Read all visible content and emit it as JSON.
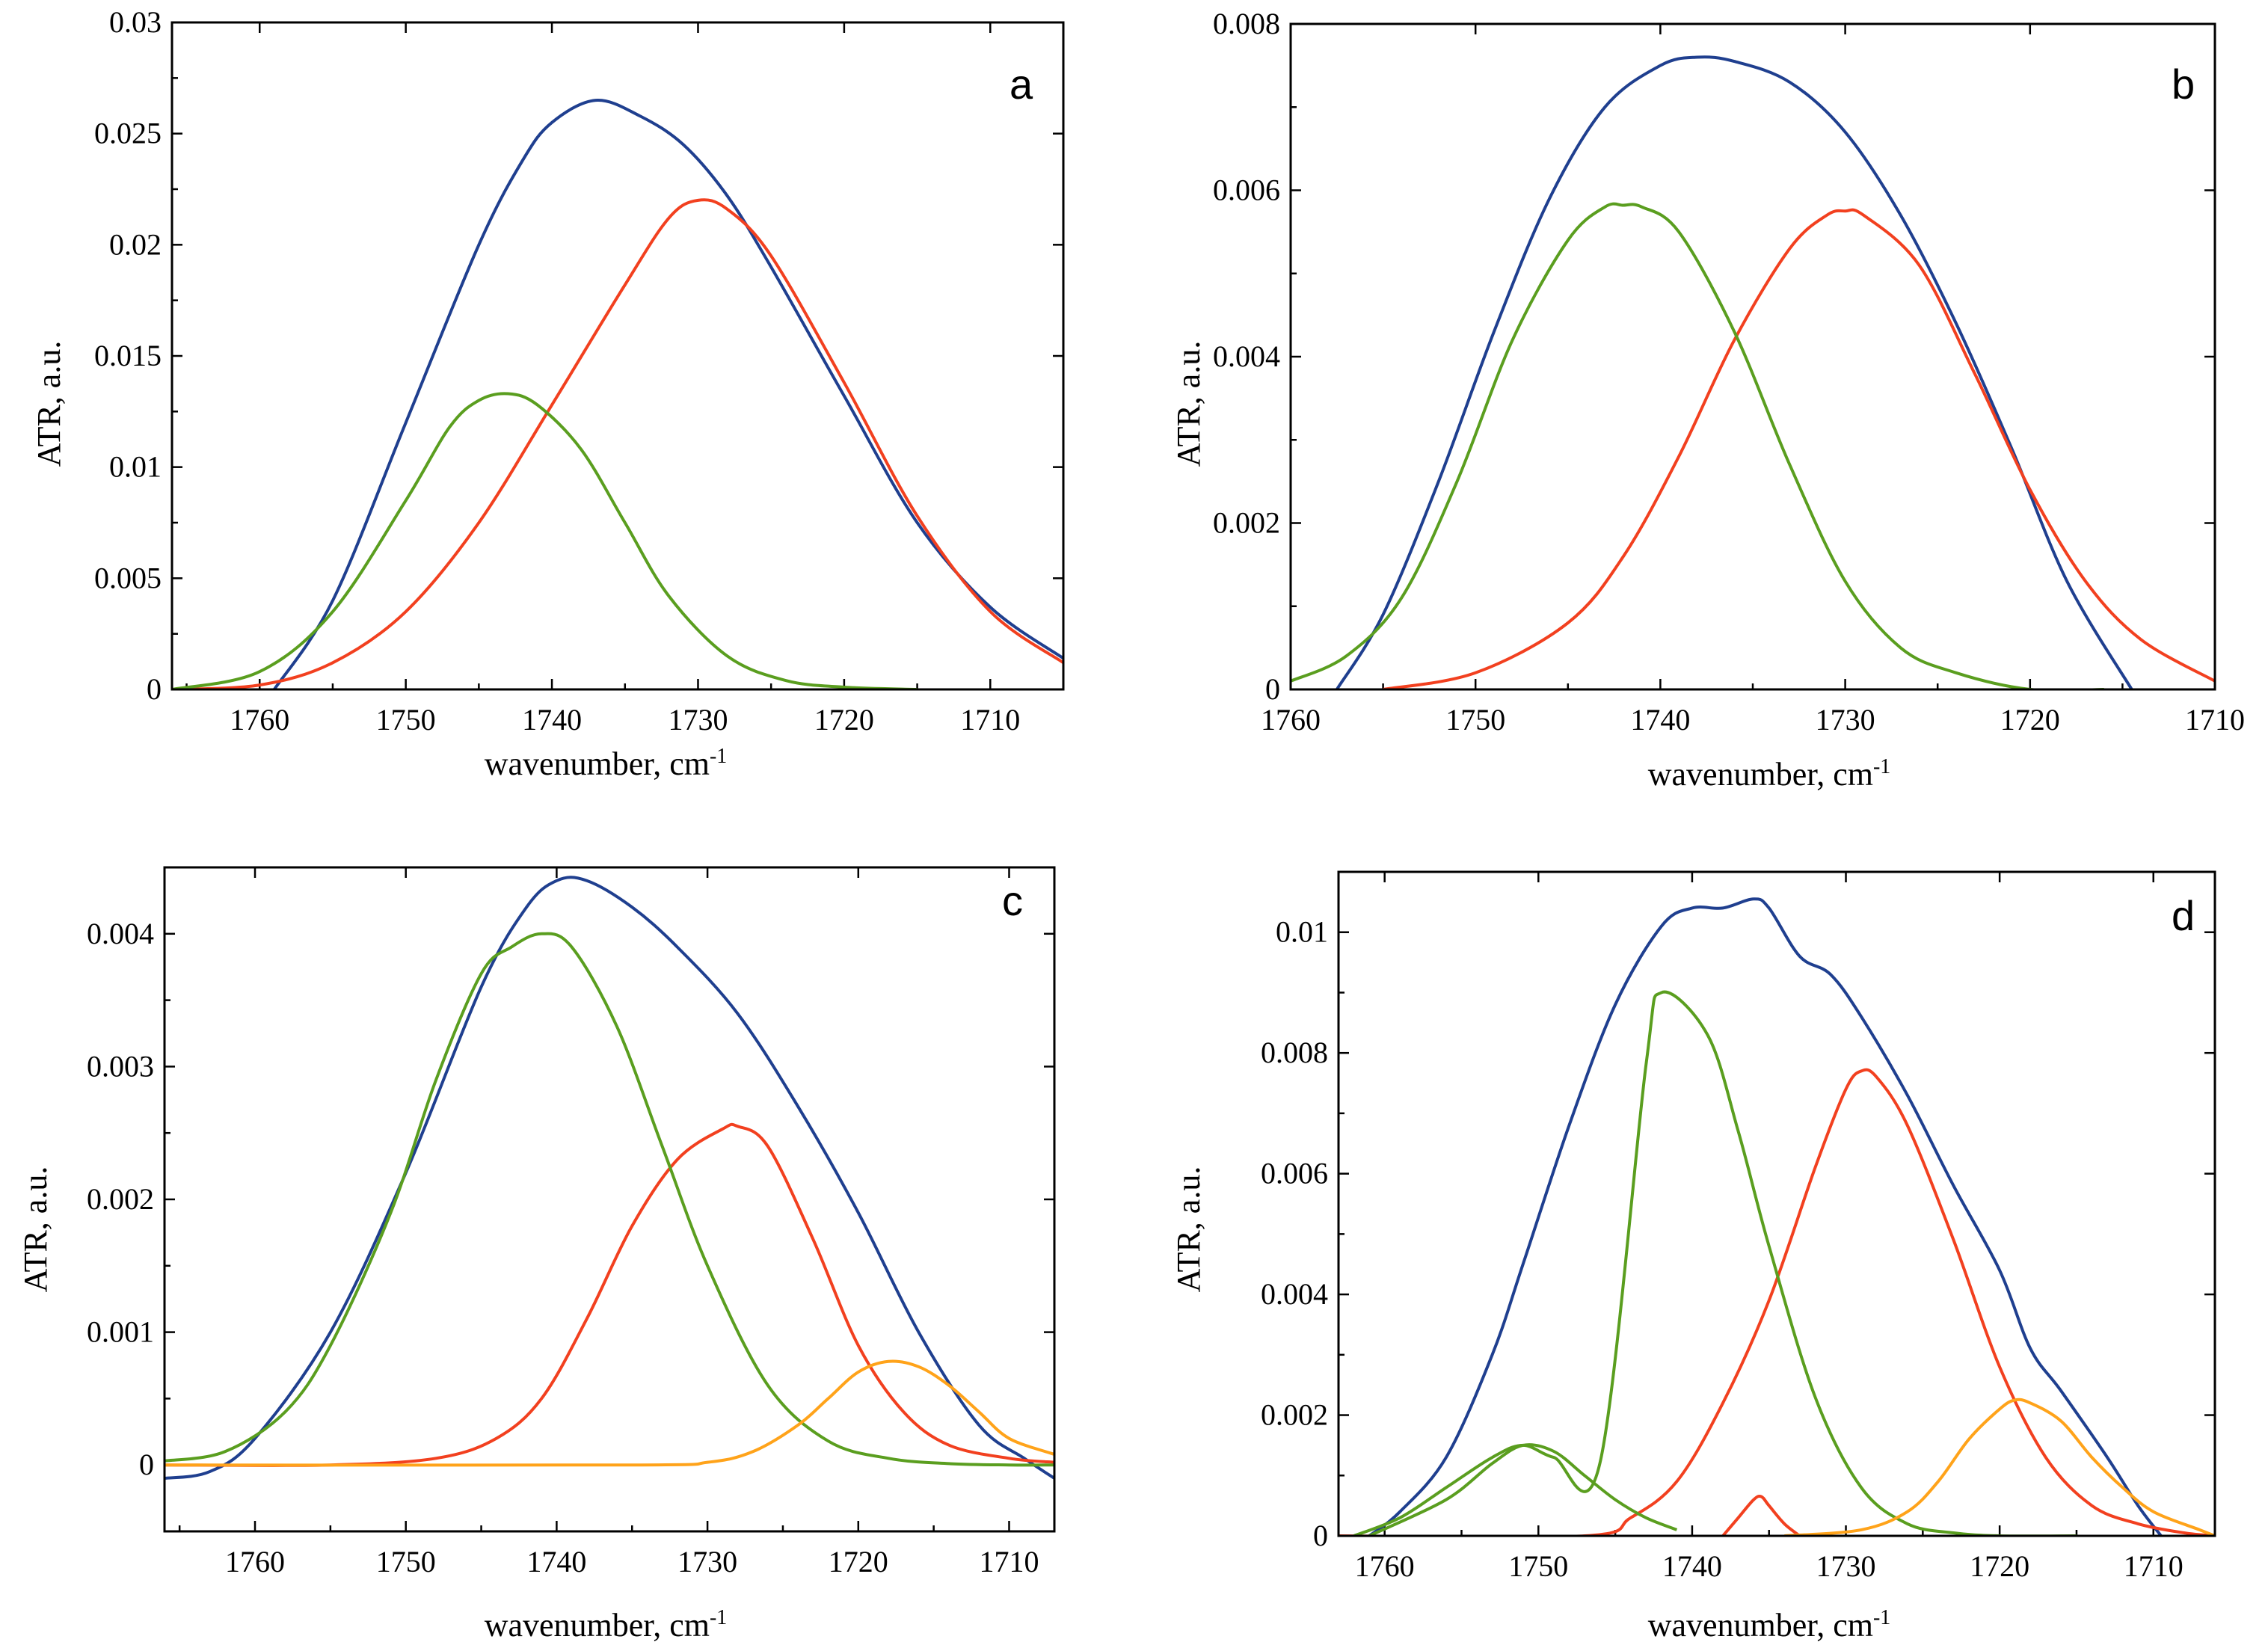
{
  "colors": {
    "blue": "#1f3f8f",
    "red": "#f2401f",
    "green": "#5a9e1f",
    "orange": "#ffa31a"
  },
  "chart_data": [
    {
      "type": "line",
      "panel": "a",
      "xlabel": "wavenumber, cm-1",
      "ylabel": "ATR, a.u.",
      "xlim": [
        1766,
        1705
      ],
      "ylim": [
        0,
        0.03
      ],
      "x_reversed": true,
      "xticks": [
        1760,
        1750,
        1740,
        1730,
        1720,
        1710
      ],
      "xtick_labels": [
        "1760",
        "1750",
        "1740",
        "1730",
        "1720",
        "1710"
      ],
      "yticks": [
        0,
        0.005,
        0.01,
        0.015,
        0.02,
        0.025,
        0.03
      ],
      "ytick_labels": [
        "0",
        "0.005",
        "0.01",
        "0.015",
        "0.02",
        "0.025",
        "0.03"
      ],
      "series": [
        {
          "color": "blue",
          "x": [
            1759,
            1755,
            1750,
            1745,
            1742,
            1740,
            1737,
            1734,
            1731,
            1728,
            1725,
            1720,
            1715,
            1710,
            1705
          ],
          "y": [
            0,
            0.004,
            0.012,
            0.02,
            0.0238,
            0.0255,
            0.0265,
            0.0258,
            0.0245,
            0.0222,
            0.019,
            0.0132,
            0.0075,
            0.0037,
            0.0014
          ]
        },
        {
          "color": "red",
          "x": [
            1766,
            1760,
            1755,
            1750,
            1745,
            1740,
            1735,
            1732,
            1730,
            1728,
            1725,
            1720,
            1715,
            1710,
            1705
          ],
          "y": [
            0,
            0.0002,
            0.0012,
            0.0035,
            0.0075,
            0.0128,
            0.0182,
            0.0212,
            0.022,
            0.0216,
            0.0195,
            0.0138,
            0.0078,
            0.0035,
            0.0012
          ]
        },
        {
          "color": "green",
          "x": [
            1766,
            1760,
            1755,
            1750,
            1747,
            1745,
            1743,
            1741,
            1738,
            1735,
            1732,
            1728,
            1724,
            1720,
            1715
          ],
          "y": [
            0,
            0.0008,
            0.0035,
            0.0085,
            0.0118,
            0.013,
            0.0133,
            0.0128,
            0.0108,
            0.0075,
            0.0042,
            0.0015,
            0.0004,
            0.0001,
            0
          ]
        }
      ]
    },
    {
      "type": "line",
      "panel": "b",
      "xlabel": "wavenumber, cm-1",
      "ylabel": "ATR, a.u.",
      "xlim": [
        1760,
        1710
      ],
      "ylim": [
        0,
        0.008
      ],
      "x_reversed": true,
      "xticks": [
        1760,
        1750,
        1740,
        1730,
        1720,
        1710
      ],
      "xtick_labels": [
        "1760",
        "1750",
        "1740",
        "1730",
        "1720",
        "1710"
      ],
      "yticks": [
        0,
        0.002,
        0.004,
        0.006,
        0.008
      ],
      "ytick_labels": [
        "0",
        "0.002",
        "0.004",
        "0.006",
        "0.008"
      ],
      "series": [
        {
          "color": "blue",
          "x": [
            1757.5,
            1755,
            1752,
            1749,
            1746,
            1743,
            1740,
            1738,
            1736,
            1733,
            1730,
            1727,
            1724,
            1721,
            1718,
            1714.5
          ],
          "y": [
            0,
            0.0009,
            0.0025,
            0.0043,
            0.0059,
            0.007,
            0.0075,
            0.0076,
            0.00755,
            0.0073,
            0.0067,
            0.0057,
            0.0044,
            0.0029,
            0.0013,
            0
          ]
        },
        {
          "color": "red",
          "x": [
            1755,
            1750,
            1745,
            1742,
            1739,
            1736,
            1733,
            1731,
            1730,
            1729,
            1726,
            1723,
            1720,
            1717,
            1714,
            1710
          ],
          "y": [
            0,
            0.0002,
            0.0008,
            0.0016,
            0.0028,
            0.0042,
            0.0053,
            0.0057,
            0.00575,
            0.0057,
            0.0051,
            0.0038,
            0.0024,
            0.0013,
            0.0006,
            0.0001
          ]
        },
        {
          "color": "green",
          "x": [
            1760,
            1757,
            1754,
            1751,
            1748,
            1745,
            1743,
            1742,
            1741,
            1739,
            1736,
            1733,
            1730,
            1727,
            1724,
            1720,
            1716
          ],
          "y": [
            0.0001,
            0.0004,
            0.0011,
            0.0025,
            0.0042,
            0.0054,
            0.0058,
            0.00582,
            0.0058,
            0.0055,
            0.0043,
            0.0027,
            0.0013,
            0.0005,
            0.0002,
            0,
            0
          ]
        }
      ]
    },
    {
      "type": "line",
      "panel": "c",
      "xlabel": "wavenumber, cm-1",
      "ylabel": "ATR, a.u.",
      "xlim": [
        1766,
        1707
      ],
      "ylim": [
        -0.0005,
        0.0045
      ],
      "x_reversed": true,
      "xticks": [
        1760,
        1750,
        1740,
        1730,
        1720,
        1710
      ],
      "xtick_labels": [
        "1760",
        "1750",
        "1740",
        "1730",
        "1720",
        "1710"
      ],
      "yticks": [
        0,
        0.001,
        0.002,
        0.003,
        0.004
      ],
      "ytick_labels": [
        "0",
        "0.001",
        "0.002",
        "0.003",
        "0.004"
      ],
      "series": [
        {
          "color": "blue",
          "x": [
            1766,
            1763,
            1760,
            1755,
            1750,
            1745,
            1742,
            1740,
            1738,
            1735,
            1732,
            1728,
            1724,
            1720,
            1716,
            1712,
            1709,
            1707
          ],
          "y": [
            -0.0001,
            -5e-05,
            0.0002,
            0.001,
            0.0022,
            0.0036,
            0.0042,
            0.0044,
            0.0044,
            0.0042,
            0.0039,
            0.0034,
            0.0027,
            0.0019,
            0.001,
            0.0003,
            5e-05,
            -0.0001
          ]
        },
        {
          "color": "red",
          "x": [
            1766,
            1755,
            1748,
            1744,
            1741,
            1738,
            1735,
            1732,
            1729,
            1728,
            1726,
            1723,
            1720,
            1717,
            1714,
            1710,
            1707
          ],
          "y": [
            0,
            0,
            5e-05,
            0.0002,
            0.0005,
            0.0011,
            0.0018,
            0.0023,
            0.00253,
            0.00255,
            0.0024,
            0.0017,
            0.0009,
            0.0004,
            0.00015,
            5e-05,
            2e-05
          ]
        },
        {
          "color": "green",
          "x": [
            1766,
            1762,
            1758,
            1755,
            1751,
            1748,
            1745,
            1743,
            1741,
            1739,
            1736,
            1733,
            1730,
            1726,
            1722,
            1718,
            1714,
            1710,
            1707
          ],
          "y": [
            3e-05,
            0.0001,
            0.0004,
            0.0009,
            0.0019,
            0.0029,
            0.0037,
            0.0039,
            0.004,
            0.0039,
            0.0033,
            0.0024,
            0.0015,
            0.0006,
            0.00018,
            5e-05,
            1e-05,
            0,
            0
          ]
        },
        {
          "color": "orange",
          "x": [
            1766,
            1735,
            1730,
            1727,
            1724,
            1722,
            1720,
            1718,
            1716,
            1714,
            1712,
            1710,
            1707
          ],
          "y": [
            0,
            0,
            2e-05,
            0.0001,
            0.0003,
            0.0005,
            0.0007,
            0.00078,
            0.00074,
            0.0006,
            0.0004,
            0.0002,
            8e-05
          ]
        }
      ]
    },
    {
      "type": "line",
      "panel": "d",
      "xlabel": "wavenumber, cm-1",
      "ylabel": "ATR, a.u.",
      "xlim": [
        1763,
        1706
      ],
      "ylim": [
        0,
        0.011
      ],
      "x_reversed": true,
      "xticks": [
        1760,
        1750,
        1740,
        1730,
        1720,
        1710
      ],
      "xtick_labels": [
        "1760",
        "1750",
        "1740",
        "1730",
        "1720",
        "1710"
      ],
      "yticks": [
        0,
        0.002,
        0.004,
        0.006,
        0.008,
        0.01
      ],
      "ytick_labels": [
        "0",
        "0.002",
        "0.004",
        "0.006",
        "0.008",
        "0.01"
      ],
      "series": [
        {
          "color": "blue",
          "x": [
            1761,
            1759,
            1756,
            1753,
            1751,
            1748,
            1745,
            1742,
            1740,
            1738,
            1736,
            1735,
            1733,
            1731,
            1729,
            1726,
            1723,
            1720,
            1718,
            1716,
            1713,
            1711,
            1709.5
          ],
          "y": [
            0,
            0.0004,
            0.0013,
            0.003,
            0.0045,
            0.0068,
            0.0088,
            0.0101,
            0.0104,
            0.0104,
            0.01055,
            0.0104,
            0.0096,
            0.0093,
            0.0086,
            0.0073,
            0.0058,
            0.0044,
            0.0031,
            0.0024,
            0.0013,
            0.0005,
            0
          ]
        },
        {
          "color": "red",
          "x": [
            1763,
            1747,
            1744,
            1741,
            1738,
            1735,
            1732,
            1730,
            1729,
            1728,
            1726,
            1723,
            1720,
            1717,
            1714,
            1711,
            1708,
            1706
          ],
          "y": [
            0,
            0,
            0.0003,
            0.0009,
            0.0022,
            0.0039,
            0.0061,
            0.0074,
            0.0077,
            0.0076,
            0.0068,
            0.0049,
            0.0028,
            0.0013,
            0.0005,
            0.0002,
            5e-05,
            0
          ]
        },
        {
          "color": "red",
          "x": [
            1738,
            1737,
            1736,
            1735.5,
            1735,
            1734,
            1733
          ],
          "y": [
            0,
            0.0003,
            0.0006,
            0.00065,
            0.0005,
            0.0002,
            0
          ]
        },
        {
          "color": "green",
          "x": [
            1762,
            1759,
            1756,
            1753,
            1751,
            1749,
            1746,
            1743,
            1742,
            1739,
            1737,
            1735,
            1732,
            1729,
            1726,
            1723,
            1720,
            1715
          ],
          "y": [
            0,
            0.0003,
            0.0008,
            0.0013,
            0.0015,
            0.0013,
            0.0012,
            0.0078,
            0.009,
            0.0083,
            0.0067,
            0.0048,
            0.0023,
            0.0008,
            0.0002,
            5e-05,
            0,
            0
          ]
        },
        {
          "color": "green",
          "x": [
            1761,
            1756,
            1753,
            1751,
            1749,
            1747,
            1745,
            1743,
            1741
          ],
          "y": [
            0,
            0.0006,
            0.0012,
            0.0015,
            0.0014,
            0.001,
            0.0006,
            0.0003,
            0.0001
          ]
        },
        {
          "color": "orange",
          "x": [
            1734,
            1729,
            1726,
            1724,
            1722,
            1720,
            1719,
            1718,
            1716,
            1714,
            1712,
            1710,
            1707,
            1706
          ],
          "y": [
            0,
            0.0001,
            0.0004,
            0.0009,
            0.0016,
            0.0021,
            0.00225,
            0.0022,
            0.0019,
            0.0013,
            0.0008,
            0.0004,
            0.0001,
            0
          ]
        }
      ]
    }
  ],
  "panels": [
    {
      "letter": "a"
    },
    {
      "letter": "b"
    },
    {
      "letter": "c"
    },
    {
      "letter": "d"
    }
  ]
}
